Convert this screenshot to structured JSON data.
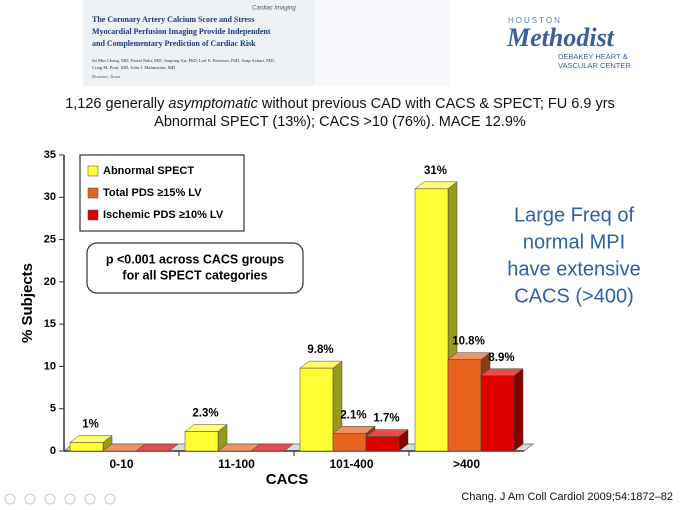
{
  "slide": {
    "paper": {
      "section": "Cardiac Imaging",
      "title": [
        "The Coronary Artery Calcium Score and Stress",
        "Myocardial Perfusion Imaging Provide Independent",
        "and Complementary Prediction of Cardiac Risk"
      ],
      "authors": [
        "Su Min Chang, MD, Faisal Nabi, MD, Jiaqiong Xu, PhD, Leif E. Peterson, PhD, Arup Achari, MD,",
        "Craig M. Pratt, MD, John J. Mahmarian, MD"
      ],
      "location": "Houston, Texas"
    },
    "logo": {
      "top": "HOUSTON",
      "name": "Methodist",
      "lines": [
        "DEBAKEY HEART &",
        "VASCULAR CENTER"
      ]
    },
    "summary": {
      "line1": [
        "1,126 generally ",
        "asymptomatic",
        " without previous CAD with CACS & SPECT; FU 6.9 yrs"
      ],
      "line2": "Abnormal SPECT (13%); CACS >10 (76%). MACE 12.9%"
    },
    "note": [
      "Large Freq of",
      "normal MPI",
      "have extensive",
      "CACS (>400)"
    ],
    "citation": "Chang. J Am Coll Cardiol 2009;54:1872–82"
  },
  "chart_data": {
    "type": "bar3d",
    "x_label": "CACS",
    "y_label": "% Subjects",
    "categories": [
      "0-10",
      "11-100",
      "101-400",
      ">400"
    ],
    "series": [
      {
        "name": "Abnormal SPECT",
        "color": "#ffff33",
        "values": [
          1,
          2.3,
          9.8,
          31
        ],
        "value_labels": [
          "1%",
          "2.3%",
          "9.8%",
          "31%"
        ]
      },
      {
        "name": "Total PDS ≥15% LV",
        "color": "#e8641e",
        "values": [
          0,
          0,
          2.1,
          10.8
        ],
        "value_labels": [
          null,
          null,
          "2.1%",
          "10.8%"
        ]
      },
      {
        "name": "Ischemic PDS ≥10% LV",
        "color": "#dd0000",
        "values": [
          0,
          0,
          1.7,
          8.9
        ],
        "value_labels": [
          null,
          null,
          "1.7%",
          "8.9%"
        ]
      }
    ],
    "ylim": [
      0,
      35
    ],
    "yticks": [
      0,
      5,
      10,
      15,
      20,
      25,
      30,
      35
    ],
    "annotation": [
      "p <0.001 across CACS groups",
      "for all SPECT categories"
    ]
  }
}
